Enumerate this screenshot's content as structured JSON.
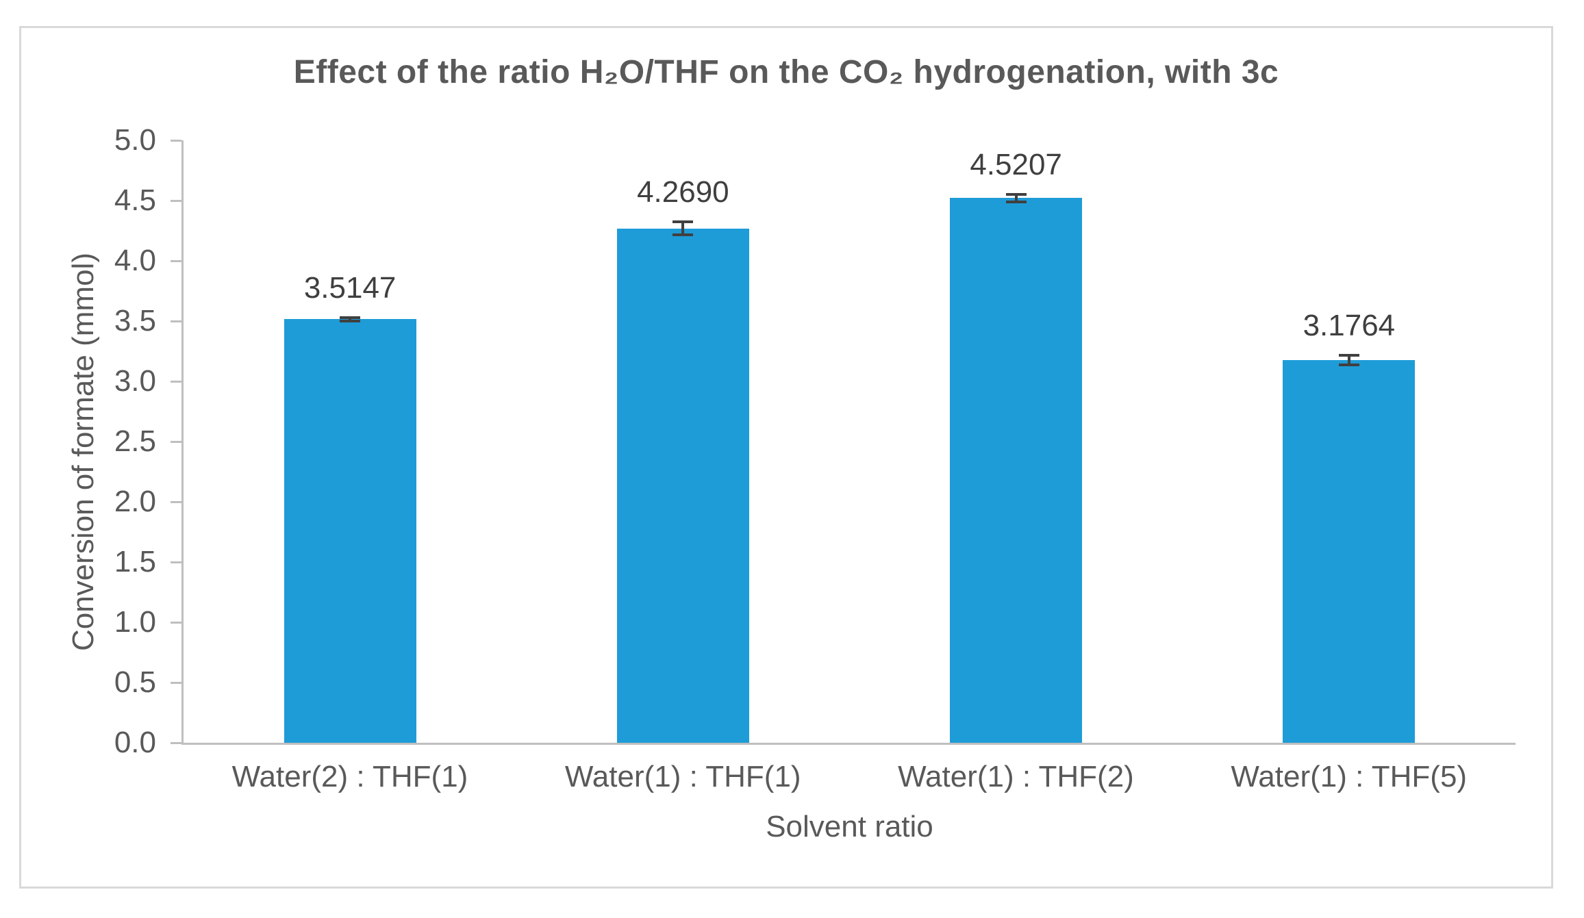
{
  "chart_data": {
    "type": "bar",
    "title": "Effect of the ratio H₂O/THF on the CO₂ hydrogenation, with 3c",
    "xlabel": "Solvent ratio",
    "ylabel": "Conversion of formate (mmol)",
    "categories": [
      "Water(2) : THF(1)",
      "Water(1) : THF(1)",
      "Water(1) : THF(2)",
      "Water(1) : THF(5)"
    ],
    "values": [
      3.5147,
      4.269,
      4.5207,
      3.1764
    ],
    "data_labels": [
      "3.5147",
      "4.2690",
      "4.5207",
      "3.1764"
    ],
    "error_bars": [
      0.015,
      0.055,
      0.03,
      0.04
    ],
    "ylim": [
      0,
      5
    ],
    "ytick_step": 0.5,
    "ytick_labels": [
      "0.0",
      "0.5",
      "1.0",
      "1.5",
      "2.0",
      "2.5",
      "3.0",
      "3.5",
      "4.0",
      "4.5",
      "5.0"
    ],
    "grid": false,
    "legend": false,
    "colors": {
      "bar": "#1E9CD8",
      "axis_line": "#BFBFBF",
      "axis_text": "#595959",
      "data_label_text": "#3F3F3F",
      "error_bar": "#404040",
      "frame_border": "#D9D9D9"
    }
  }
}
